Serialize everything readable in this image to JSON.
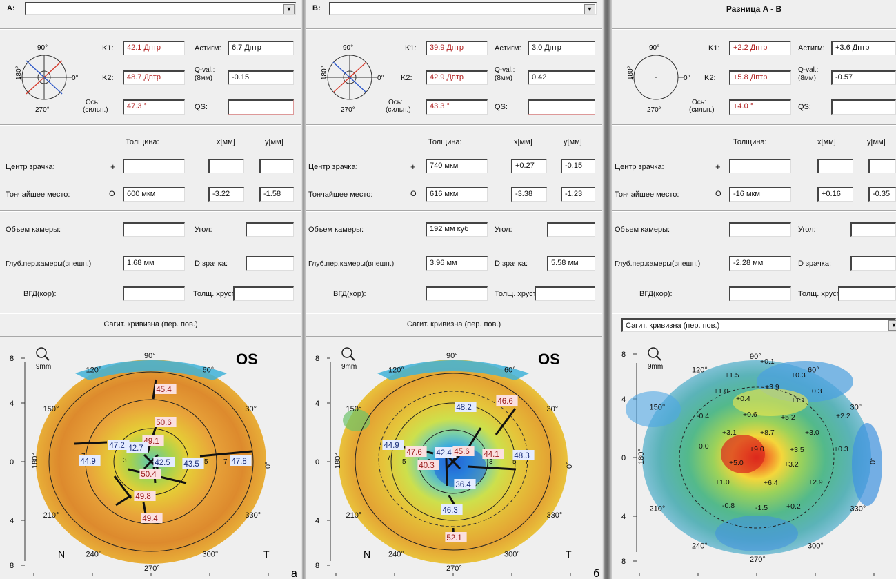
{
  "panels": [
    {
      "id": "a",
      "header_label": "A:",
      "selector_value": "",
      "k1_label": "K1:",
      "k1": "42.1 Дптр",
      "astig_label": "Астигм:",
      "astig": "6.7 Дптр",
      "k2_label": "K2:",
      "k2": "48.7 Дптр",
      "qval_label_1": "Q-val.:",
      "qval_label_2": "(8мм)",
      "qval": "-0.15",
      "axis_label_1": "Ось:",
      "axis_label_2": "(сильн.)",
      "axis": "47.3 °",
      "qs_label": "QS:",
      "qs": "",
      "dial_top": "90°",
      "dial_bottom": "270°",
      "dial_left": "180°",
      "dial_right": "0°",
      "thickness_header": "Толщина:",
      "x_header": "x[мм]",
      "y_header": "y[мм]",
      "pupil_center_label": "Центр зрачка:",
      "pupil_center_thickness": "",
      "pupil_center_x": "",
      "pupil_center_y": "",
      "thinnest_label": "Тончайшее место:",
      "thinnest_thickness": "600 мкм",
      "thinnest_x": "-3.22",
      "thinnest_y": "-1.58",
      "chamber_volume_label": "Объем камеры:",
      "chamber_volume": "",
      "angle_label": "Угол:",
      "angle": "",
      "chamber_depth_label": "Глуб.пер.камеры(внешн.)",
      "chamber_depth": "1.68 мм",
      "pupil_d_label": "D зрачка:",
      "pupil_d": "",
      "iop_label": "ВГД(кор):",
      "iop": "",
      "lens_label": "Толщ. хруст",
      "lens": "",
      "map_title": "Сагит. кривизна (пер. пов.)",
      "map_eye": "OS",
      "map_size": "9mm",
      "corner_n": "N",
      "corner_t": "T",
      "panel_letter": "а",
      "y_ticks": [
        "8",
        "4",
        "0",
        "4",
        "8"
      ],
      "x_ticks": [
        "8",
        "4",
        "0",
        "4",
        "8"
      ],
      "angle_labels": [
        "90°",
        "60°",
        "30°",
        "0°",
        "330°",
        "300°",
        "270°",
        "240°",
        "210°",
        "180°",
        "150°",
        "120°"
      ],
      "ring_numbers": [
        "7",
        "5",
        "3",
        "3",
        "5",
        "7"
      ],
      "values": [
        "45.4",
        "50.6",
        "49.1",
        "42.7",
        "47.2",
        "44.9",
        "42.5",
        "43.5",
        "47.8",
        "50.4",
        "49.8",
        "49.4"
      ]
    },
    {
      "id": "b",
      "header_label": "B:",
      "selector_value": "",
      "k1_label": "K1:",
      "k1": "39.9 Дптр",
      "astig_label": "Астигм:",
      "astig": "3.0 Дптр",
      "k2_label": "K2:",
      "k2": "42.9 Дптр",
      "qval_label_1": "Q-val.:",
      "qval_label_2": "(8мм)",
      "qval": "0.42",
      "axis_label_1": "Ось:",
      "axis_label_2": "(сильн.)",
      "axis": "43.3 °",
      "qs_label": "QS:",
      "qs": "",
      "dial_top": "90°",
      "dial_bottom": "270°",
      "dial_left": "180°",
      "dial_right": "0°",
      "thickness_header": "Толщина:",
      "x_header": "x[мм]",
      "y_header": "y[мм]",
      "pupil_center_label": "Центр зрачка:",
      "pupil_center_thickness": "740 мкм",
      "pupil_center_x": "+0.27",
      "pupil_center_y": "-0.15",
      "thinnest_label": "Тончайшее место:",
      "thinnest_thickness": "616 мкм",
      "thinnest_x": "-3.38",
      "thinnest_y": "-1.23",
      "chamber_volume_label": "Объем камеры:",
      "chamber_volume": "192 мм куб",
      "angle_label": "Угол:",
      "angle": "",
      "chamber_depth_label": "Глуб.пер.камеры(внешн.)",
      "chamber_depth": "3.96 мм",
      "pupil_d_label": "D зрачка:",
      "pupil_d": "5.58 мм",
      "iop_label": "ВГД(кор):",
      "iop": "",
      "lens_label": "Толщ. хруст",
      "lens": "",
      "map_title": "Сагит. кривизна (пер. пов.)",
      "map_eye": "OS",
      "map_size": "9mm",
      "corner_n": "N",
      "corner_t": "T",
      "panel_letter": "б",
      "y_ticks": [
        "8",
        "4",
        "0",
        "4",
        "8"
      ],
      "x_ticks": [
        "8",
        "4",
        "0",
        "4",
        "8"
      ],
      "angle_labels": [
        "90°",
        "60°",
        "30°",
        "0°",
        "330°",
        "300°",
        "270°",
        "240°",
        "210°",
        "180°",
        "150°",
        "120°"
      ],
      "ring_numbers": [
        "7",
        "5",
        "3",
        "3",
        "5",
        "7"
      ],
      "values": [
        "48.2",
        "46.6",
        "44.9",
        "47.6",
        "42.4",
        "45.6",
        "44.1",
        "48.3",
        "40.3",
        "36.4",
        "46.3",
        "52.1"
      ]
    },
    {
      "id": "diff",
      "header_title": "Разница A - B",
      "k1_label": "K1:",
      "k1": "+2.2 Дптр",
      "astig_label": "Астигм:",
      "astig": "+3.6 Дптр",
      "k2_label": "K2:",
      "k2": "+5.8 Дптр",
      "qval_label_1": "Q-val.:",
      "qval_label_2": "(8мм)",
      "qval": "-0.57",
      "axis_label_1": "Ось:",
      "axis_label_2": "(сильн.)",
      "axis": "+4.0 °",
      "qs_label": "QS:",
      "qs": "",
      "dial_top": "90°",
      "dial_bottom": "270°",
      "dial_left": "180°",
      "dial_right": "0°",
      "thickness_header": "Толщина:",
      "x_header": "x[мм]",
      "y_header": "y[мм]",
      "pupil_center_label": "Центр зрачка:",
      "pupil_center_thickness": "",
      "pupil_center_x": "",
      "pupil_center_y": "",
      "thinnest_label": "Тончайшее место:",
      "thinnest_thickness": "-16 мкм",
      "thinnest_x": "+0.16",
      "thinnest_y": "-0.35",
      "chamber_volume_label": "Объем камеры:",
      "chamber_volume": "",
      "angle_label": "Угол:",
      "angle": "",
      "chamber_depth_label": "Глуб.пер.камеры(внешн.)",
      "chamber_depth": "-2.28 мм",
      "pupil_d_label": "D зрачка:",
      "pupil_d": "",
      "iop_label": "ВГД(кор):",
      "iop": "",
      "lens_label": "Толщ. хруст",
      "lens": "",
      "map_dropdown": "Сагит. кривизна (пер. пов.)",
      "map_size": "9mm",
      "y_ticks": [
        "8",
        "4",
        "0",
        "4",
        "8"
      ],
      "x_ticks": [
        "8",
        "4",
        "0",
        "4",
        "8"
      ],
      "angle_labels": [
        "90°",
        "60°",
        "30°",
        "0°",
        "330°",
        "300°",
        "270°",
        "240°",
        "210°",
        "180°",
        "150°",
        "120°"
      ],
      "values": [
        "+0.1",
        "+1.5",
        "+0.3",
        "+1.0",
        "+3.9",
        "0.3",
        "+0.4",
        "+1.1",
        "-0.4",
        "+0.6",
        "+5.2",
        "+2.2",
        "+3.1",
        "+8.7",
        "+3.0",
        "0.0",
        "+9.0",
        "+3.5",
        "+0.3",
        "+5.0",
        "+3.2",
        "+1.0",
        "+6.4",
        "+2.9",
        "-0.8",
        "-1.5",
        "+0.2"
      ]
    }
  ],
  "colors": {
    "panel_bg": "#efefef",
    "divider": "#6f6f6f",
    "red_text": "#b02020",
    "dial_red": "#d63a2c",
    "dial_blue": "#2a55c8",
    "map_bg_light": "#efefef"
  }
}
